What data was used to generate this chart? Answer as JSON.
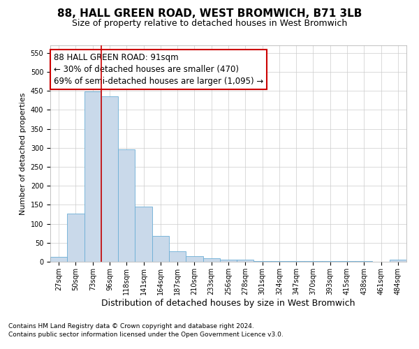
{
  "title": "88, HALL GREEN ROAD, WEST BROMWICH, B71 3LB",
  "subtitle": "Size of property relative to detached houses in West Bromwich",
  "xlabel": "Distribution of detached houses by size in West Bromwich",
  "ylabel": "Number of detached properties",
  "footnote1": "Contains HM Land Registry data © Crown copyright and database right 2024.",
  "footnote2": "Contains public sector information licensed under the Open Government Licence v3.0.",
  "annotation_title": "88 HALL GREEN ROAD: 91sqm",
  "annotation_line1": "← 30% of detached houses are smaller (470)",
  "annotation_line2": "69% of semi-detached houses are larger (1,095) →",
  "bar_color": "#c9d9ea",
  "bar_edge_color": "#6baed6",
  "vline_color": "#cc0000",
  "annotation_box_color": "#cc0000",
  "background_color": "#ffffff",
  "grid_color": "#cccccc",
  "categories": [
    "27sqm",
    "50sqm",
    "73sqm",
    "96sqm",
    "118sqm",
    "141sqm",
    "164sqm",
    "187sqm",
    "210sqm",
    "233sqm",
    "256sqm",
    "278sqm",
    "301sqm",
    "324sqm",
    "347sqm",
    "370sqm",
    "393sqm",
    "415sqm",
    "438sqm",
    "461sqm",
    "484sqm"
  ],
  "values": [
    12,
    127,
    448,
    435,
    296,
    145,
    68,
    27,
    14,
    9,
    6,
    5,
    2,
    1,
    1,
    1,
    1,
    1,
    1,
    0,
    6
  ],
  "vline_x_index": 3,
  "ylim": [
    0,
    570
  ],
  "yticks": [
    0,
    50,
    100,
    150,
    200,
    250,
    300,
    350,
    400,
    450,
    500,
    550
  ],
  "title_fontsize": 11,
  "subtitle_fontsize": 9,
  "xlabel_fontsize": 9,
  "ylabel_fontsize": 8,
  "tick_fontsize": 7,
  "annotation_fontsize": 8.5,
  "footnote_fontsize": 6.5
}
